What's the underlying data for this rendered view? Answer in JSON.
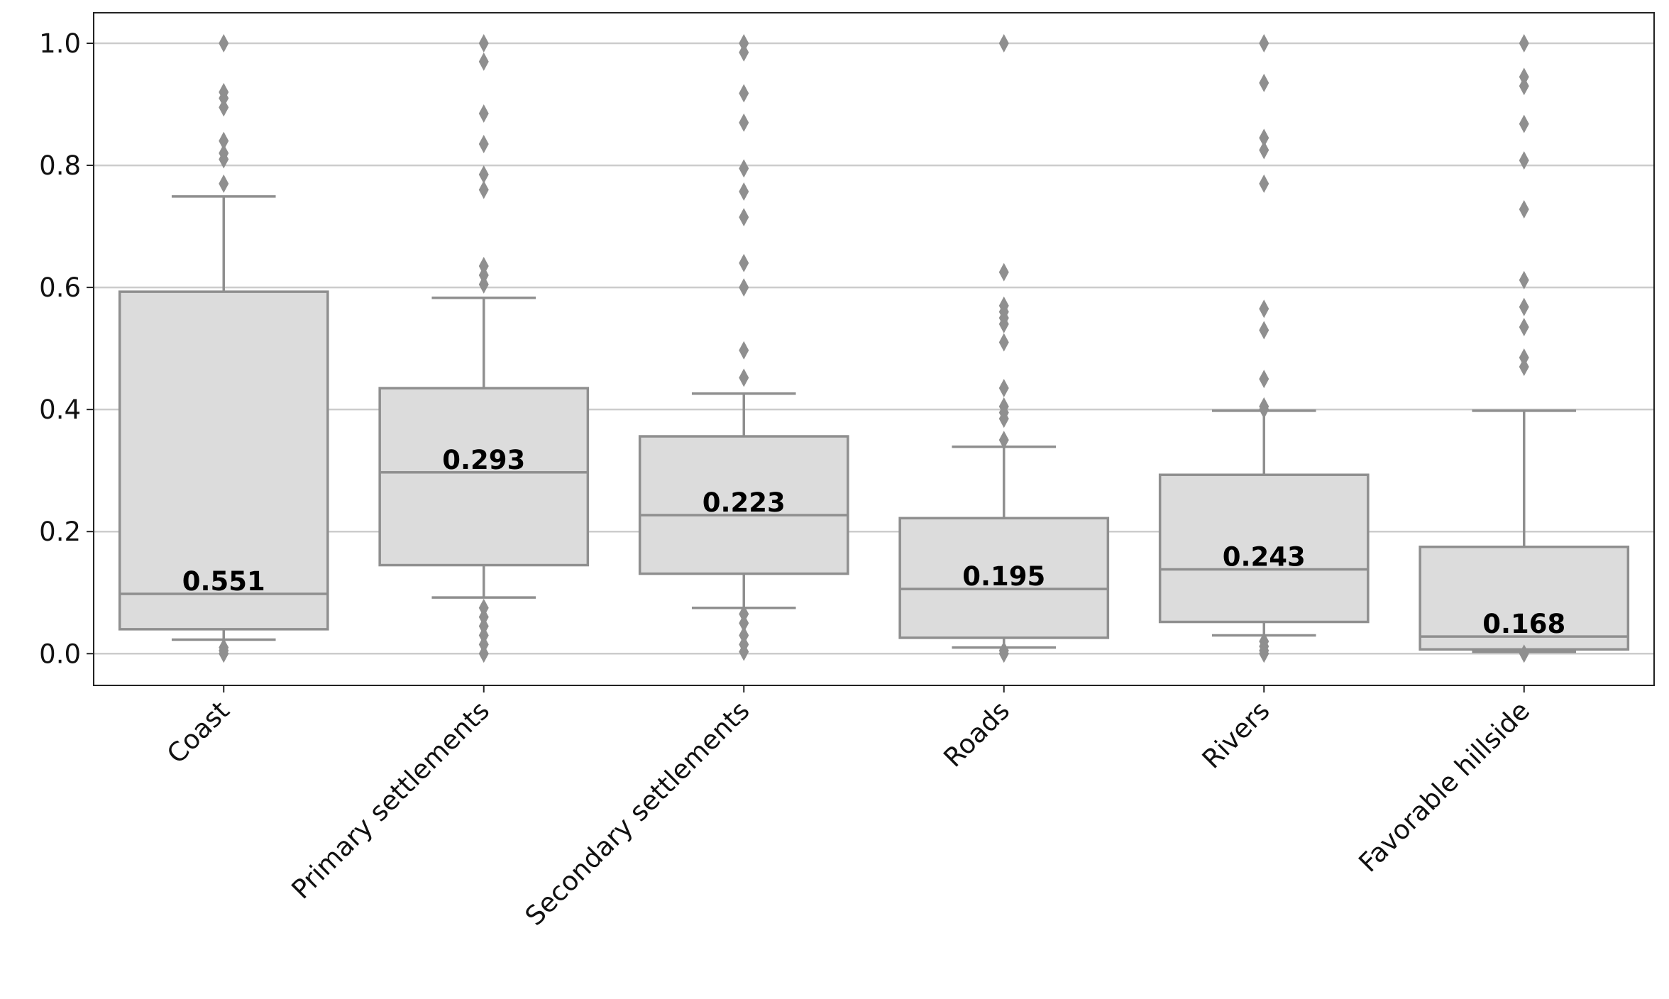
{
  "chart_data": {
    "type": "box",
    "title": "",
    "xlabel": "",
    "ylabel": "",
    "ylim": [
      -0.052,
      1.05
    ],
    "yticks": [
      0.0,
      0.2,
      0.4,
      0.6,
      0.8,
      1.0
    ],
    "ytick_labels": [
      "0.0",
      "0.2",
      "0.4",
      "0.6",
      "0.8",
      "1.0"
    ],
    "grid": "horizontal",
    "colors": {
      "box_fill": "#dcdcdc",
      "box_edge": "#8f8f8f",
      "grid": "#cccccc",
      "label": "#000000"
    },
    "categories": [
      "Coast",
      "Primary settlements",
      "Secondary settlements",
      "Roads",
      "Rivers",
      "Favorable hillside"
    ],
    "boxes": [
      {
        "whislo": 0.023,
        "q1": 0.04,
        "median": 0.098,
        "q3": 0.593,
        "whishi": 0.749,
        "fliers": [
          1.0,
          0.92,
          0.91,
          0.895,
          0.84,
          0.82,
          0.81,
          0.77,
          0.01,
          0.005,
          0.0
        ],
        "label": "0.551"
      },
      {
        "whislo": 0.092,
        "q1": 0.145,
        "median": 0.297,
        "q3": 0.435,
        "whishi": 0.583,
        "fliers": [
          1.0,
          0.97,
          0.885,
          0.835,
          0.785,
          0.76,
          0.635,
          0.62,
          0.605,
          0.075,
          0.06,
          0.045,
          0.03,
          0.015,
          0.0
        ],
        "label": "0.293"
      },
      {
        "whislo": 0.075,
        "q1": 0.131,
        "median": 0.227,
        "q3": 0.356,
        "whishi": 0.426,
        "fliers": [
          1.0,
          0.985,
          0.918,
          0.87,
          0.795,
          0.757,
          0.715,
          0.64,
          0.6,
          0.497,
          0.452,
          0.065,
          0.05,
          0.03,
          0.015,
          0.003
        ],
        "label": "0.223"
      },
      {
        "whislo": 0.01,
        "q1": 0.026,
        "median": 0.106,
        "q3": 0.222,
        "whishi": 0.339,
        "fliers": [
          1.0,
          0.625,
          0.57,
          0.56,
          0.55,
          0.54,
          0.51,
          0.435,
          0.405,
          0.395,
          0.385,
          0.35,
          0.005,
          0.0
        ],
        "label": "0.195"
      },
      {
        "whislo": 0.03,
        "q1": 0.052,
        "median": 0.138,
        "q3": 0.293,
        "whishi": 0.398,
        "fliers": [
          1.0,
          0.935,
          0.845,
          0.825,
          0.77,
          0.565,
          0.53,
          0.45,
          0.405,
          0.4,
          0.02,
          0.012,
          0.005,
          0.0
        ],
        "label": "0.243"
      },
      {
        "whislo": 0.003,
        "q1": 0.007,
        "median": 0.028,
        "q3": 0.175,
        "whishi": 0.398,
        "fliers": [
          1.0,
          0.945,
          0.93,
          0.868,
          0.808,
          0.728,
          0.612,
          0.568,
          0.535,
          0.485,
          0.47,
          0.0
        ],
        "label": "0.168"
      }
    ]
  }
}
